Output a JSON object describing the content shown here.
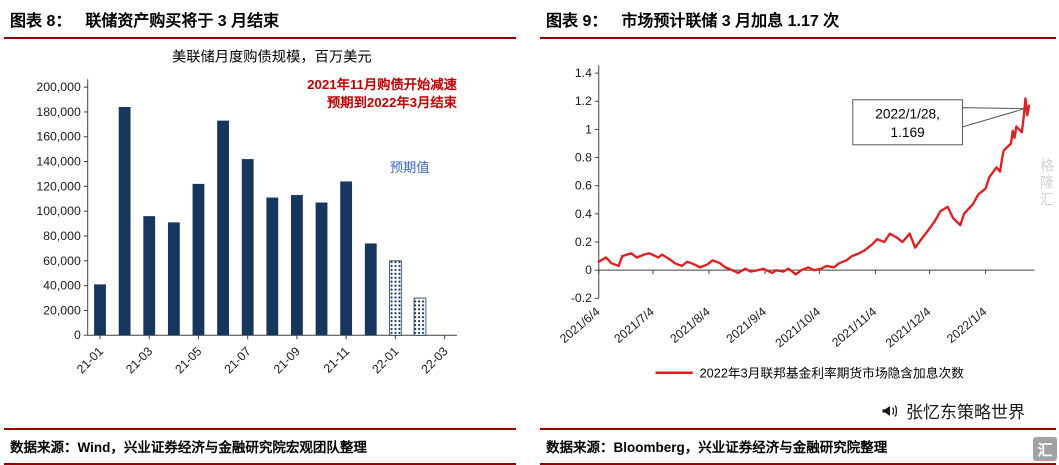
{
  "header": {
    "left_label": "图表 8：",
    "left_title": "联储资产购买将于 3 月结束",
    "right_label": "图表 9：",
    "right_title": "市场预计联储 3 月加息 1.17 次"
  },
  "footer": {
    "left_source": "数据来源：Wind，兴业证券经济与金融研究院宏观团队整理",
    "right_source": "数据来源：Bloomberg，兴业证券经济与金融研究院整理"
  },
  "watermark": {
    "icon": "megaphone-icon",
    "text": "张忆东策略世界",
    "logo_glyph": "汇",
    "logo_text": "格隆汇"
  },
  "colors": {
    "rule": "#990000",
    "bar": "#17365D",
    "line": "#E02020",
    "annotation_red": "#C00000",
    "annotation_blue": "#3A66C4",
    "axis": "#404040"
  },
  "chart_data": [
    {
      "type": "bar",
      "title": "美联储月度购债规模，百万美元",
      "annotation_red_lines": [
        "2021年11月购债开始减速",
        "预期到2022年3月结束"
      ],
      "annotation_blue": "预期值",
      "categories": [
        "21-01",
        "21-02",
        "21-03",
        "21-04",
        "21-05",
        "21-06",
        "21-07",
        "21-08",
        "21-09",
        "21-10",
        "21-11",
        "21-12",
        "22-01",
        "22-02",
        "22-03"
      ],
      "values": [
        41000,
        184000,
        96000,
        91000,
        122000,
        173000,
        142000,
        111000,
        113000,
        107000,
        124000,
        74000,
        60000,
        30000,
        0
      ],
      "expected_flags": [
        false,
        false,
        false,
        false,
        false,
        false,
        false,
        false,
        false,
        false,
        false,
        false,
        true,
        true,
        true
      ],
      "x_tick_labels": [
        "21-01",
        "21-03",
        "21-05",
        "21-07",
        "21-09",
        "21-11",
        "22-01",
        "22-03"
      ],
      "ylim": [
        0,
        200000
      ],
      "ytick_step": 20000,
      "grid": false,
      "legend_position": "none"
    },
    {
      "type": "line",
      "ylim": [
        -0.2,
        1.4
      ],
      "ytick_step": 0.2,
      "grid": false,
      "legend_position": "bottom",
      "x_domain": [
        "2021/6/4",
        "2022/1/31"
      ],
      "x_tick_labels": [
        "2021/6/4",
        "2021/7/4",
        "2021/8/4",
        "2021/9/4",
        "2021/10/4",
        "2021/11/4",
        "2021/12/4",
        "2022/1/4"
      ],
      "callout": {
        "date": "2022/1/28",
        "value": 1.169,
        "label_lines": [
          "2022/1/28,",
          "1.169"
        ]
      },
      "series": [
        {
          "name": "2022年3月联邦基金利率期货市场隐含加息次数",
          "dates": [
            "2021/6/4",
            "2021/6/8",
            "2021/6/11",
            "2021/6/15",
            "2021/6/17",
            "2021/6/22",
            "2021/6/25",
            "2021/6/29",
            "2021/7/2",
            "2021/7/7",
            "2021/7/9",
            "2021/7/13",
            "2021/7/16",
            "2021/7/20",
            "2021/7/23",
            "2021/7/27",
            "2021/7/30",
            "2021/8/3",
            "2021/8/6",
            "2021/8/10",
            "2021/8/13",
            "2021/8/17",
            "2021/8/20",
            "2021/8/24",
            "2021/8/27",
            "2021/8/31",
            "2021/9/3",
            "2021/9/8",
            "2021/9/10",
            "2021/9/14",
            "2021/9/17",
            "2021/9/21",
            "2021/9/24",
            "2021/9/28",
            "2021/10/1",
            "2021/10/5",
            "2021/10/8",
            "2021/10/12",
            "2021/10/15",
            "2021/10/19",
            "2021/10/22",
            "2021/10/26",
            "2021/10/29",
            "2021/11/2",
            "2021/11/5",
            "2021/11/9",
            "2021/11/12",
            "2021/11/16",
            "2021/11/19",
            "2021/11/23",
            "2021/11/26",
            "2021/11/30",
            "2021/12/3",
            "2021/12/7",
            "2021/12/10",
            "2021/12/14",
            "2021/12/17",
            "2021/12/21",
            "2021/12/23",
            "2021/12/28",
            "2021/12/31",
            "2022/1/4",
            "2022/1/6",
            "2022/1/10",
            "2022/1/12",
            "2022/1/13",
            "2022/1/14",
            "2022/1/18",
            "2022/1/19",
            "2022/1/20",
            "2022/1/21",
            "2022/1/24",
            "2022/1/25",
            "2022/1/26",
            "2022/1/27",
            "2022/1/28"
          ],
          "values": [
            0.06,
            0.09,
            0.05,
            0.03,
            0.1,
            0.12,
            0.09,
            0.11,
            0.12,
            0.09,
            0.11,
            0.08,
            0.05,
            0.03,
            0.06,
            0.04,
            0.02,
            0.04,
            0.07,
            0.05,
            0.02,
            0.0,
            -0.02,
            0.01,
            -0.01,
            0.0,
            0.01,
            -0.02,
            0.0,
            -0.01,
            0.01,
            -0.03,
            0.0,
            0.02,
            0.0,
            0.01,
            0.03,
            0.02,
            0.05,
            0.07,
            0.1,
            0.12,
            0.14,
            0.18,
            0.22,
            0.2,
            0.26,
            0.23,
            0.2,
            0.26,
            0.16,
            0.23,
            0.28,
            0.35,
            0.42,
            0.45,
            0.37,
            0.32,
            0.4,
            0.47,
            0.54,
            0.58,
            0.66,
            0.73,
            0.7,
            0.79,
            0.85,
            0.9,
            0.99,
            0.94,
            1.02,
            0.98,
            1.08,
            1.22,
            1.1,
            1.169
          ]
        }
      ]
    }
  ]
}
